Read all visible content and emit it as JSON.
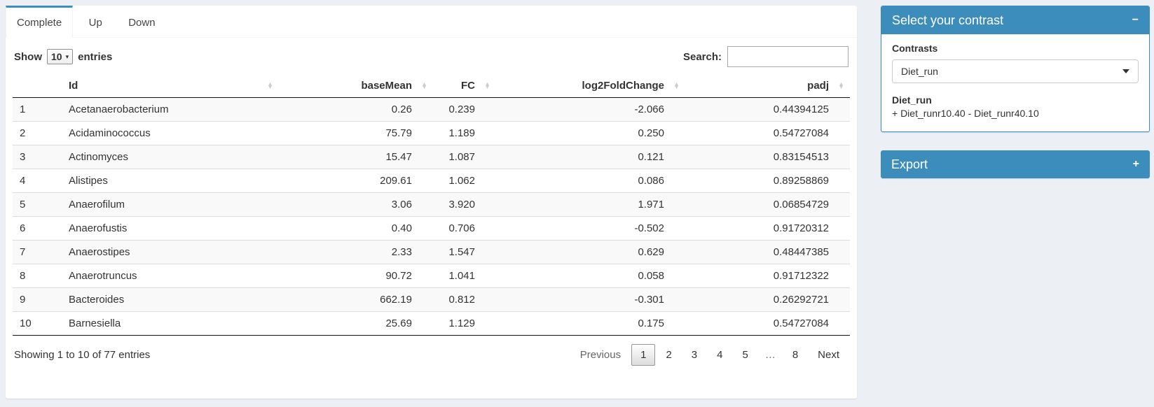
{
  "colors": {
    "accent": "#3c8dbc",
    "page_bg": "#ecf0f5",
    "stripe": "#f9f9f9"
  },
  "tabs": [
    {
      "label": "Complete",
      "active": true
    },
    {
      "label": "Up",
      "active": false
    },
    {
      "label": "Down",
      "active": false
    }
  ],
  "table_controls": {
    "show_label": "Show",
    "page_length": "10",
    "entries_label": "entries",
    "search_label": "Search:",
    "search_value": ""
  },
  "table": {
    "columns": [
      "",
      "Id",
      "baseMean",
      "FC",
      "log2FoldChange",
      "padj"
    ],
    "rows": [
      [
        "1",
        "Acetanaerobacterium",
        "0.26",
        "0.239",
        "-2.066",
        "0.44394125"
      ],
      [
        "2",
        "Acidaminococcus",
        "75.79",
        "1.189",
        "0.250",
        "0.54727084"
      ],
      [
        "3",
        "Actinomyces",
        "15.47",
        "1.087",
        "0.121",
        "0.83154513"
      ],
      [
        "4",
        "Alistipes",
        "209.61",
        "1.062",
        "0.086",
        "0.89258869"
      ],
      [
        "5",
        "Anaerofilum",
        "3.06",
        "3.920",
        "1.971",
        "0.06854729"
      ],
      [
        "6",
        "Anaerofustis",
        "0.40",
        "0.706",
        "-0.502",
        "0.91720312"
      ],
      [
        "7",
        "Anaerostipes",
        "2.33",
        "1.547",
        "0.629",
        "0.48447385"
      ],
      [
        "8",
        "Anaerotruncus",
        "90.72",
        "1.041",
        "0.058",
        "0.91712322"
      ],
      [
        "9",
        "Bacteroides",
        "662.19",
        "0.812",
        "-0.301",
        "0.26292721"
      ],
      [
        "10",
        "Barnesiella",
        "25.69",
        "1.129",
        "0.175",
        "0.54727084"
      ]
    ],
    "info": "Showing 1 to 10 of 77 entries",
    "pagination": {
      "previous": "Previous",
      "pages": [
        "1",
        "2",
        "3",
        "4",
        "5",
        "…",
        "8"
      ],
      "current": "1",
      "next": "Next"
    }
  },
  "contrast_panel": {
    "title": "Select your contrast",
    "collapse_icon": "−",
    "contrasts_label": "Contrasts",
    "selected_contrast": "Diet_run",
    "contrast_name": "Diet_run",
    "contrast_formula": "+ Diet_runr10.40 - Diet_runr40.10"
  },
  "export_panel": {
    "title": "Export",
    "expand_icon": "+"
  }
}
